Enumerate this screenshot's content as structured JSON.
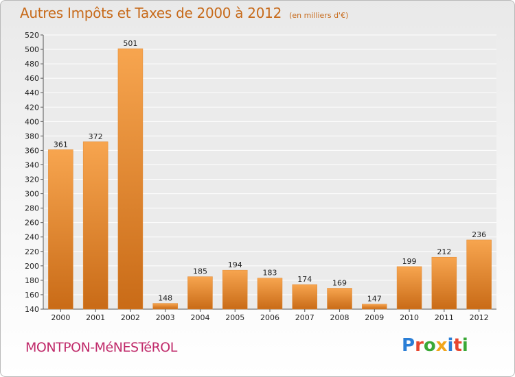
{
  "header": {
    "title": "Autres Impôts et Taxes de 2000 à 2012",
    "subtitle": "(en milliers d'€)"
  },
  "footer": {
    "commune": "MONTPON-MéNESTéROL",
    "logo": "Proxiti"
  },
  "colors": {
    "bar_light": "#f7a54f",
    "bar_dark": "#c96b17",
    "title": "#c76a1a",
    "commune": "#c02b6b"
  },
  "chart_data": {
    "type": "bar",
    "categories": [
      "2000",
      "2001",
      "2002",
      "2003",
      "2004",
      "2005",
      "2006",
      "2007",
      "2008",
      "2009",
      "2010",
      "2011",
      "2012"
    ],
    "values": [
      361,
      372,
      501,
      148,
      185,
      194,
      183,
      174,
      169,
      147,
      199,
      212,
      236
    ],
    "ylim": [
      140,
      520
    ],
    "yticks": [
      140,
      160,
      180,
      200,
      220,
      240,
      260,
      280,
      300,
      320,
      340,
      360,
      380,
      400,
      420,
      440,
      460,
      480,
      500,
      520
    ],
    "grid": true
  }
}
